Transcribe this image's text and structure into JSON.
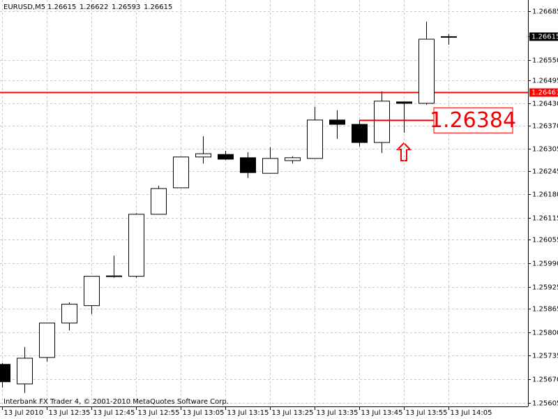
{
  "chart_data": {
    "type": "candlestick",
    "title": "EURUSD,M5",
    "ohlc_header": [
      1.26615,
      1.26622,
      1.26593,
      1.26615
    ],
    "footer": "Interbank FX Trader 4, © 2001-2010 MetaQuotes Software Corp.",
    "x": [
      "13 Jul 2010",
      null,
      "13 Jul 12:35",
      null,
      "13 Jul 12:45",
      null,
      "13 Jul 12:55",
      null,
      "13 Jul 13:05",
      null,
      "13 Jul 13:15",
      null,
      "13 Jul 13:25",
      null,
      "13 Jul 13:35",
      null,
      "13 Jul 13:45",
      null,
      "13 Jul 13:55",
      null,
      "13 Jul 14:05"
    ],
    "open": [
      1.25711,
      1.25657,
      1.2573,
      1.25825,
      1.25873,
      1.25954,
      1.25954,
      1.26125,
      1.26198,
      1.26283,
      1.2629,
      1.26281,
      1.26238,
      1.26273,
      1.26279,
      1.26385,
      1.26373,
      1.26323,
      1.26435,
      1.26431,
      1.26615
    ],
    "high": [
      1.25715,
      1.25759,
      1.25825,
      1.25882,
      1.25954,
      1.26011,
      1.26128,
      1.26204,
      1.26283,
      1.2634,
      1.263,
      1.26296,
      1.2631,
      1.26285,
      1.26421,
      1.26412,
      1.26385,
      1.26464,
      1.26435,
      1.26656,
      1.26622
    ],
    "low": [
      1.25647,
      1.25632,
      1.25719,
      1.25805,
      1.2585,
      1.2595,
      1.2595,
      1.26125,
      1.26198,
      1.26265,
      1.26275,
      1.26225,
      1.26238,
      1.26265,
      1.26279,
      1.26333,
      1.26312,
      1.26294,
      1.2635,
      1.26427,
      1.26593
    ],
    "close": [
      1.25663,
      1.25728,
      1.25825,
      1.25877,
      1.25954,
      1.25955,
      1.26125,
      1.26196,
      1.26283,
      1.26292,
      1.26277,
      1.2624,
      1.26279,
      1.26281,
      1.26385,
      1.26373,
      1.26323,
      1.26437,
      1.26431,
      1.26608,
      1.26615
    ],
    "up_color": "#ffffff",
    "down_color": "#000000",
    "ylim": [
      1.25595,
      1.26716
    ],
    "yticks": [
      1.26685,
      {
        "value": 1.2655,
        "label": "1.26550"
      },
      1.26495,
      {
        "value": 1.2643,
        "label": "1.26430"
      },
      {
        "value": 1.2637,
        "label": "1.26370"
      },
      1.26305,
      1.26245,
      {
        "value": 1.2618,
        "label": "1.26180"
      },
      1.26115,
      1.26055,
      {
        "value": 1.2599,
        "label": "1.25990"
      },
      1.25925,
      1.25865,
      {
        "value": 1.258,
        "label": "1.25800"
      },
      1.25735,
      {
        "value": 1.2567,
        "label": "1.25670"
      },
      1.25605
    ],
    "grid": true,
    "current_price": 1.26615,
    "hline": {
      "value": 1.26461,
      "color": "#ff0000"
    },
    "price_label": 1.26384
  }
}
